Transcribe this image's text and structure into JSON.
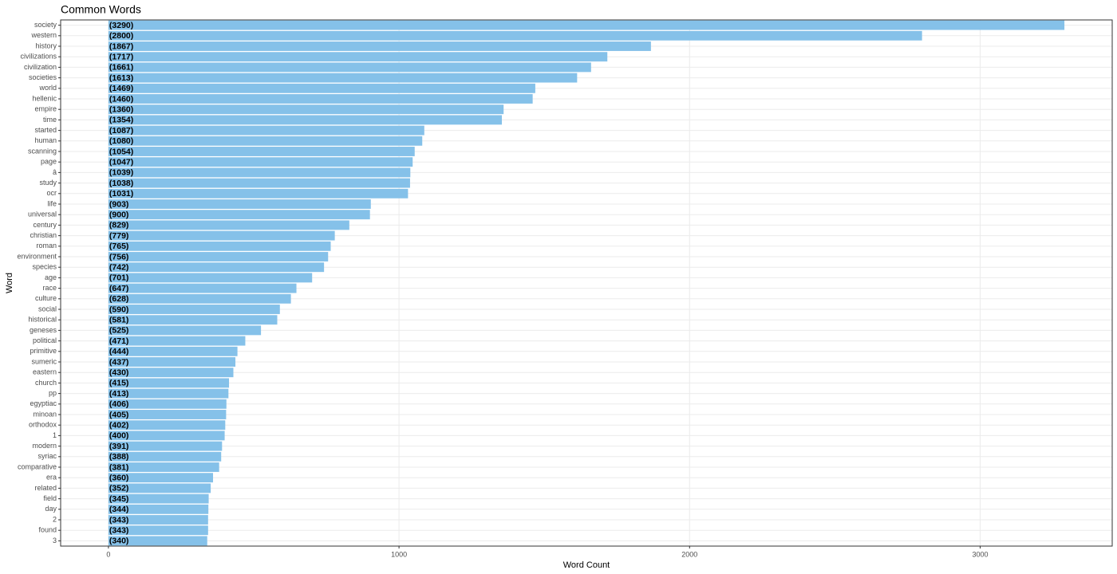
{
  "chart_data": {
    "type": "barh",
    "title": "Common Words",
    "xlabel": "Word Count",
    "ylabel": "Word",
    "categories": [
      "society",
      "western",
      "history",
      "civilizations",
      "civilization",
      "societies",
      "world",
      "hellenic",
      "empire",
      "time",
      "started",
      "human",
      "scanning",
      "page",
      "â",
      "study",
      "ocr",
      "life",
      "universal",
      "century",
      "christian",
      "roman",
      "environment",
      "species",
      "age",
      "race",
      "culture",
      "social",
      "historical",
      "geneses",
      "political",
      "primitive",
      "sumeric",
      "eastern",
      "church",
      "pp",
      "egyptiac",
      "minoan",
      "orthodox",
      "1",
      "modern",
      "syriac",
      "comparative",
      "era",
      "related",
      "field",
      "day",
      "2",
      "found",
      "3"
    ],
    "values": [
      3290,
      2800,
      1867,
      1717,
      1661,
      1613,
      1469,
      1460,
      1360,
      1354,
      1087,
      1080,
      1054,
      1047,
      1039,
      1038,
      1031,
      903,
      900,
      829,
      779,
      765,
      756,
      742,
      701,
      647,
      628,
      590,
      581,
      525,
      471,
      444,
      437,
      430,
      415,
      413,
      406,
      405,
      402,
      400,
      391,
      388,
      381,
      360,
      352,
      345,
      344,
      343,
      343,
      340
    ],
    "value_labels": [
      "(3290)",
      "(2800)",
      "(1867)",
      "(1717)",
      "(1661)",
      "(1613)",
      "(1469)",
      "(1460)",
      "(1360)",
      "(1354)",
      "(1087)",
      "(1080)",
      "(1054)",
      "(1047)",
      "(1039)",
      "(1038)",
      "(1031)",
      "(903)",
      "(900)",
      "(829)",
      "(779)",
      "(765)",
      "(756)",
      "(742)",
      "(701)",
      "(647)",
      "(628)",
      "(590)",
      "(581)",
      "(525)",
      "(471)",
      "(444)",
      "(437)",
      "(430)",
      "(415)",
      "(413)",
      "(406)",
      "(405)",
      "(402)",
      "(400)",
      "(391)",
      "(388)",
      "(381)",
      "(360)",
      "(352)",
      "(345)",
      "(344)",
      "(343)",
      "(343)",
      "(340)"
    ],
    "color": "#85c1e9",
    "xlim": [
      -164.5,
      3454.5
    ],
    "xticks": [
      0,
      1000,
      2000,
      3000
    ],
    "grid": true
  }
}
